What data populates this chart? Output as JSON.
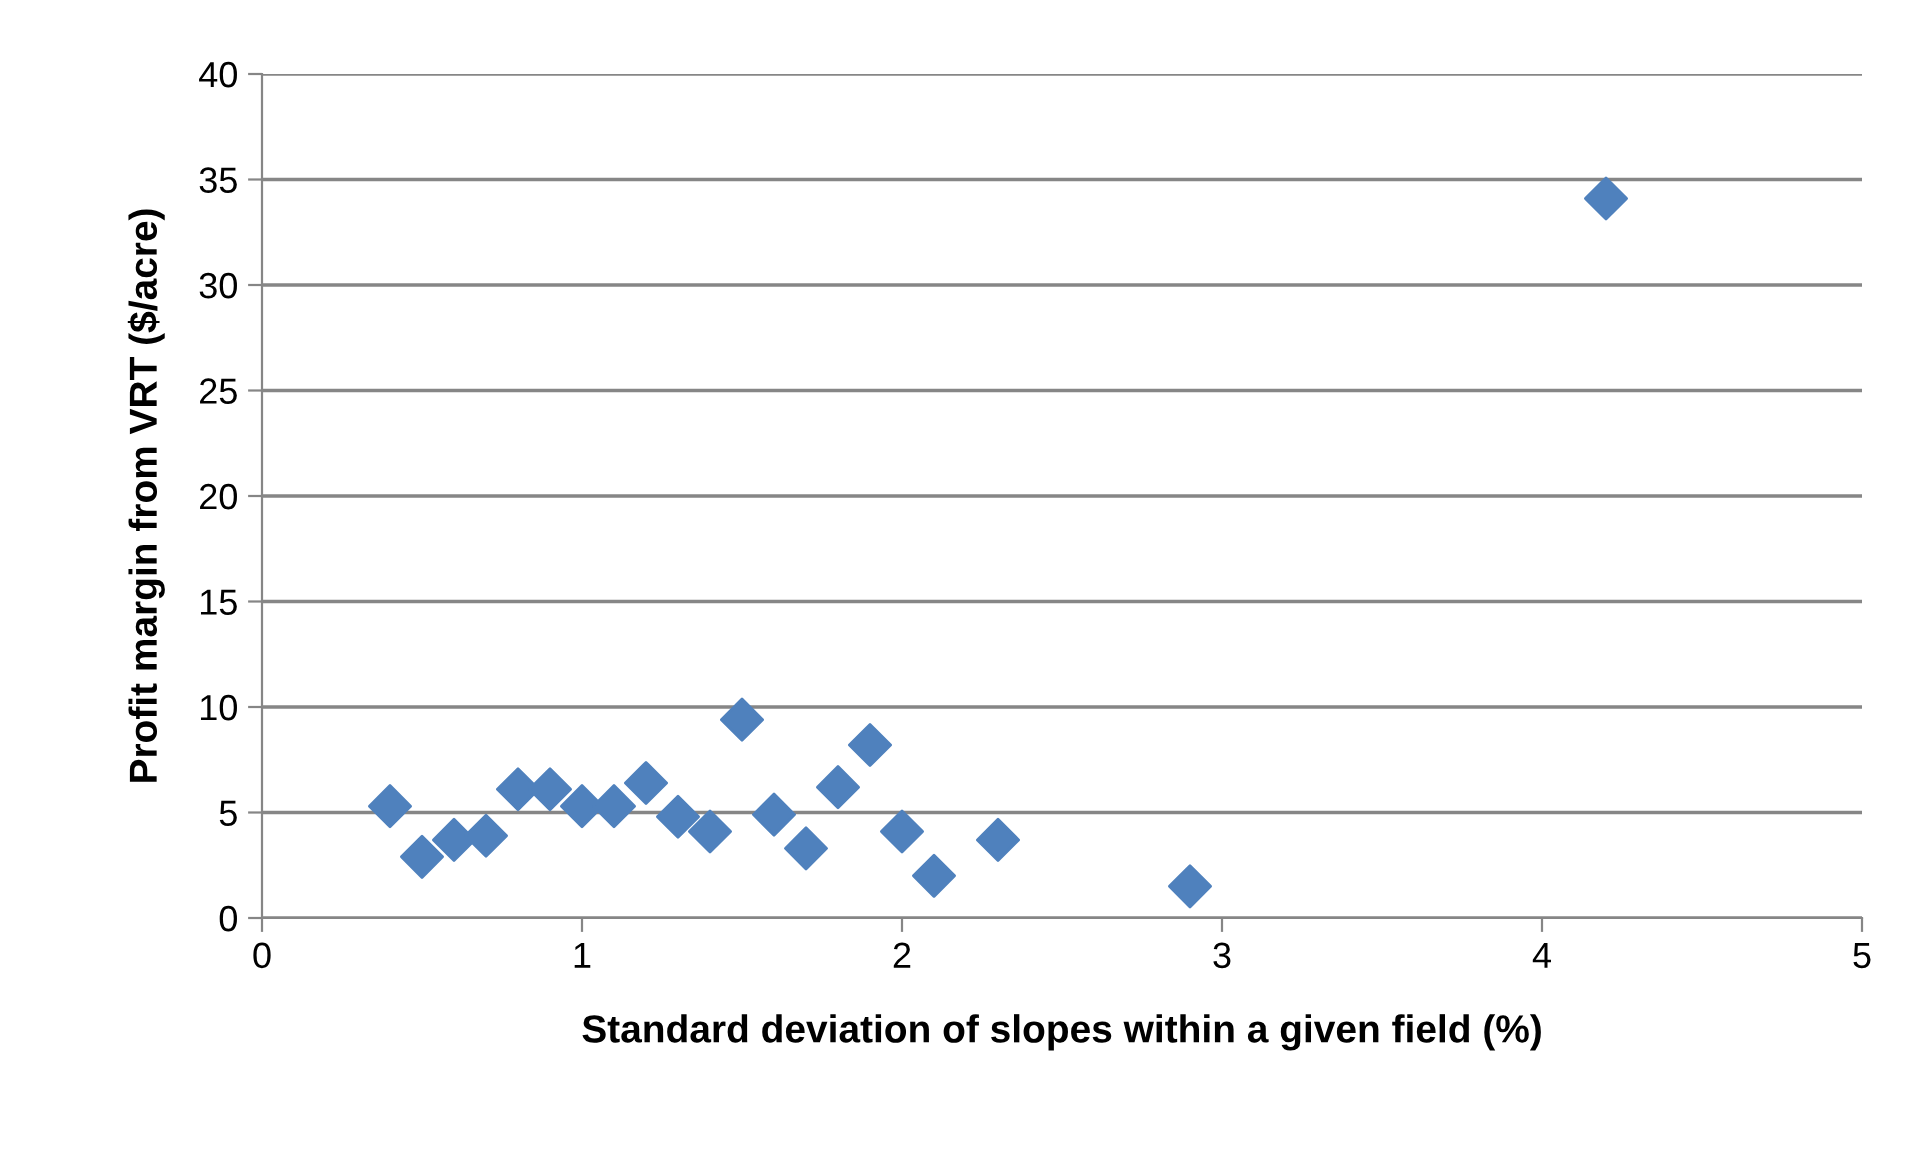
{
  "chart_data": {
    "type": "scatter",
    "xlabel": "Standard deviation of slopes within a given field (%)",
    "ylabel": "Profit margin from VRT ($/acre)",
    "x": [
      0.4,
      0.5,
      0.6,
      0.7,
      0.8,
      0.9,
      1.0,
      1.1,
      1.2,
      1.3,
      1.4,
      1.5,
      1.6,
      1.7,
      1.8,
      1.9,
      2.0,
      2.1,
      2.3,
      2.9,
      4.2
    ],
    "series": [
      {
        "color": "#4f81bd",
        "values": [
          5.3,
          2.9,
          3.7,
          3.9,
          6.1,
          6.1,
          5.3,
          5.3,
          6.4,
          4.8,
          4.1,
          9.4,
          4.9,
          3.3,
          6.2,
          8.2,
          4.1,
          2.0,
          3.7,
          1.5,
          34.1
        ]
      }
    ],
    "xlim": [
      0,
      5
    ],
    "xticks": [
      0,
      1,
      2,
      3,
      4,
      5
    ],
    "ylim": [
      0,
      40
    ],
    "yticks": [
      0,
      5,
      10,
      15,
      20,
      25,
      30,
      35,
      40
    ],
    "grid": "y",
    "marker": "diamond",
    "legend": false
  }
}
